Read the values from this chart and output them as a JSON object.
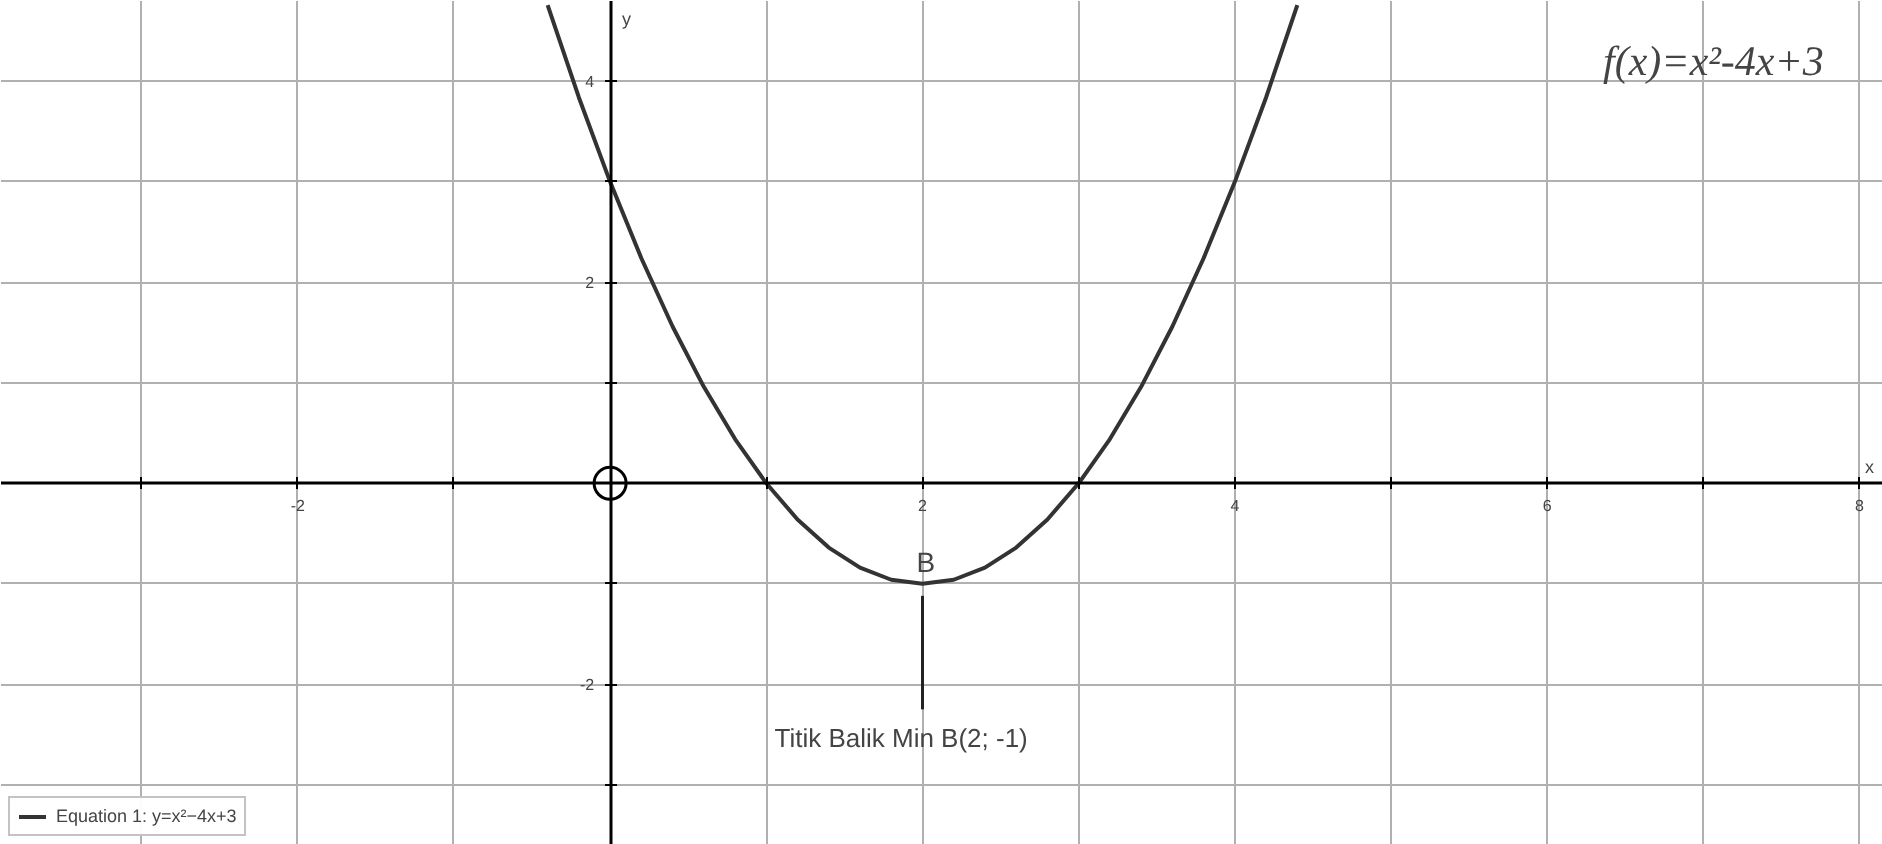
{
  "chart_data": {
    "type": "line",
    "title": "f(x)=x²-4x+3",
    "xlabel": "x",
    "ylabel": "y",
    "xlim": [
      -3.9,
      8.15
    ],
    "ylim": [
      -3.6,
      4.8
    ],
    "xticks": [
      {
        "value": -3,
        "label": null
      },
      -2,
      {
        "value": -1,
        "label": null
      },
      {
        "value": 0,
        "label": null
      },
      {
        "value": 1,
        "label": null
      },
      2,
      {
        "value": 3,
        "label": null
      },
      4,
      {
        "value": 5,
        "label": null
      },
      6,
      {
        "value": 7,
        "label": null
      },
      8
    ],
    "yticks": [
      {
        "value": -3,
        "label": null
      },
      -2,
      {
        "value": -1,
        "label": null
      },
      {
        "value": 0,
        "label": null
      },
      {
        "value": 1,
        "label": null
      },
      2,
      {
        "value": 3,
        "label": null
      },
      4
    ],
    "grid": true,
    "legend": "bottom left",
    "line_style": "solid",
    "series": [
      {
        "name": "Equation 1: y=x²−4x+3",
        "color": "#333333",
        "x": [
          -0.4,
          -0.2,
          0,
          0.2,
          0.4,
          0.6,
          0.8,
          1,
          1.2,
          1.4,
          1.6,
          1.8,
          2,
          2.2,
          2.4,
          2.6,
          2.8,
          3,
          3.2,
          3.4,
          3.6,
          3.8,
          4,
          4.2,
          4.4
        ],
        "values": [
          4.76,
          3.84,
          3,
          2.24,
          1.56,
          0.96,
          0.44,
          0,
          -0.36,
          -0.64,
          -0.84,
          -0.96,
          -1,
          -0.96,
          -0.84,
          -0.64,
          -0.36,
          0,
          0.44,
          0.96,
          1.56,
          2.24,
          3,
          3.84,
          4.76
        ]
      },
      {
        "type": "scatter",
        "marker": "circle",
        "color": "#000000",
        "x": [
          0
        ],
        "values": [
          0
        ]
      }
    ],
    "annotations": [
      {
        "text": "B",
        "x": 2,
        "y": -1
      },
      {
        "text": "Titik Balik Min B(2; -1)",
        "x": 2,
        "y": -1
      }
    ]
  }
}
